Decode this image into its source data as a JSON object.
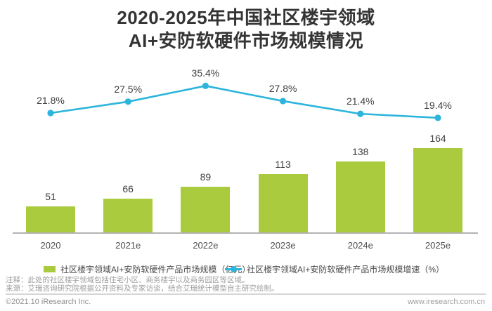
{
  "title": {
    "line1": "2020-2025年中国社区楼宇领域",
    "line2": "AI+安防软硬件市场规模情况"
  },
  "chart_data": {
    "type": "bar+line",
    "categories": [
      "2020",
      "2021e",
      "2022e",
      "2023e",
      "2024e",
      "2025e"
    ],
    "series": [
      {
        "name": "社区楼宇领域AI+安防软硬件产品市场规模（亿元）",
        "type": "bar",
        "values": [
          51,
          66,
          89,
          113,
          138,
          164
        ],
        "unit": "亿元",
        "color": "#a9cb3d"
      },
      {
        "name": "社区楼宇领域AI+安防软硬件产品市场规模增速（%）",
        "type": "line",
        "values": [
          21.8,
          27.5,
          35.4,
          27.8,
          21.4,
          19.4
        ],
        "unit": "%",
        "color": "#2cb5dc"
      }
    ],
    "value_labels": {
      "bar": [
        "51",
        "66",
        "89",
        "113",
        "138",
        "164"
      ],
      "line": [
        "21.8%",
        "27.5%",
        "35.4%",
        "27.8%",
        "21.4%",
        "19.4%"
      ]
    },
    "legend_position": "bottom",
    "grid": false,
    "axes_labeled": false
  },
  "footnotes": {
    "note": "注释：此处的社区楼宇领域包括住宅小区、商务楼宇以及商务园区等区域。",
    "source": "来源：艾瑞咨询研究院根据公开资料及专家访谈，结合艾瑞统计模型自主研究绘制。"
  },
  "footer": {
    "copyright": "©2021.10 iResearch Inc.",
    "website": "www.iresearch.com.cn"
  },
  "colors": {
    "bar": "#a9cb3d",
    "line": "#2cb5dc",
    "axis": "#b3b3b3",
    "title": "#343434"
  }
}
